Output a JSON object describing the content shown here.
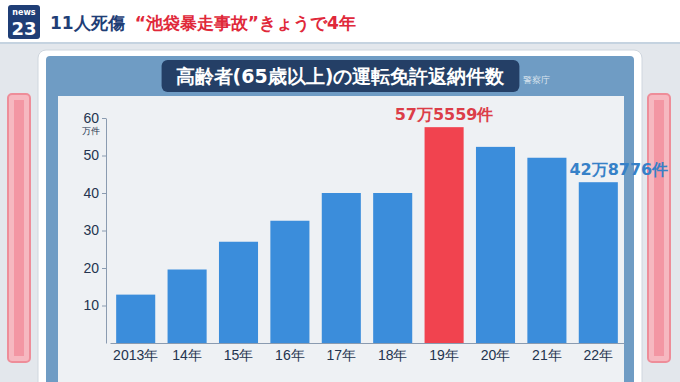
{
  "header": {
    "logo_top": "news",
    "logo_bottom": "23",
    "tag": "11人死傷",
    "headline": "“池袋暴走事故”きょうで4年"
  },
  "chart_data": {
    "type": "bar",
    "title": "高齢者(65歳以上)の運転免許返納件数",
    "source": "警察庁",
    "y_label": "万件",
    "categories": [
      "2013年",
      "14年",
      "15年",
      "16年",
      "17年",
      "18年",
      "19年",
      "20年",
      "21年",
      "22年"
    ],
    "values": [
      12.9,
      19.6,
      27,
      32.6,
      40,
      40,
      57.5559,
      52.3,
      49.4,
      42.8776
    ],
    "value_labels": [
      null,
      null,
      null,
      null,
      null,
      null,
      "57万5559件",
      null,
      null,
      "42万8776件"
    ],
    "colors": [
      "#3b8ddb",
      "#3b8ddb",
      "#3b8ddb",
      "#3b8ddb",
      "#3b8ddb",
      "#3b8ddb",
      "#f1434f",
      "#3b8ddb",
      "#3b8ddb",
      "#3b8ddb"
    ],
    "ylim": [
      0,
      60
    ],
    "yticks": [
      10,
      20,
      30,
      40,
      50,
      60
    ],
    "grid": false
  }
}
